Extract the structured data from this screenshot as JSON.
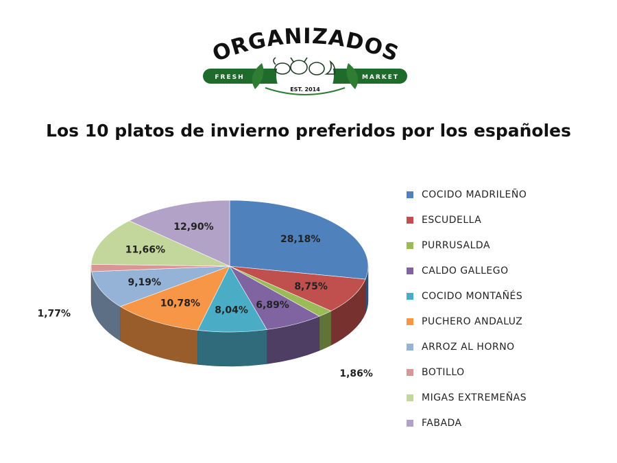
{
  "logo": {
    "brand": "ORGANIZADOS",
    "left_tag": "FRESH",
    "right_tag": "MARKET",
    "est": "EST. 2014",
    "color": "#1f6b2c"
  },
  "chart_data": {
    "type": "pie",
    "title": "Los 10 platos de invierno preferidos por los españoles",
    "legend_position": "right",
    "slices": [
      {
        "name": "COCIDO MADRILEÑO",
        "value": 28.18,
        "label": "28,18%",
        "color": "#4f81bd"
      },
      {
        "name": "ESCUDELLA",
        "value": 8.75,
        "label": "8,75%",
        "color": "#c0504d"
      },
      {
        "name": "PURRUSALDA",
        "value": 1.86,
        "label": "1,86%",
        "color": "#9bbb59"
      },
      {
        "name": "CALDO GALLEGO",
        "value": 6.89,
        "label": "6,89%",
        "color": "#8064a2"
      },
      {
        "name": "COCIDO MONTAÑÉS",
        "value": 8.04,
        "label": "8,04%",
        "color": "#4bacc6"
      },
      {
        "name": "PUCHERO ANDALUZ",
        "value": 10.78,
        "label": "10,78%",
        "color": "#f79646"
      },
      {
        "name": "ARROZ AL HORNO",
        "value": 9.19,
        "label": "9,19%",
        "color": "#95b3d7"
      },
      {
        "name": "BOTILLO",
        "value": 1.77,
        "label": "1,77%",
        "color": "#d99694"
      },
      {
        "name": "MIGAS EXTREMEÑAS",
        "value": 11.66,
        "label": "11,66%",
        "color": "#c3d69b"
      },
      {
        "name": "FABADA",
        "value": 12.9,
        "label": "12,90%",
        "color": "#b3a2c7"
      }
    ]
  }
}
